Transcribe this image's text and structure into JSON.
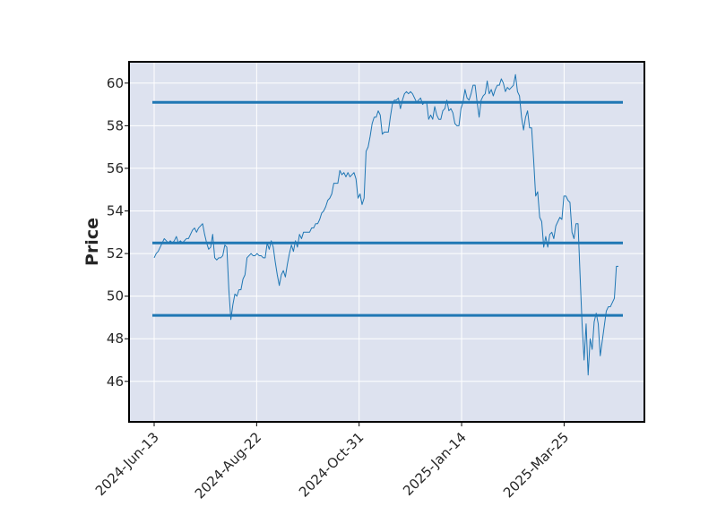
{
  "chart_data": {
    "type": "line",
    "title": "",
    "xlabel": "",
    "ylabel": "Price",
    "ylim": [
      44.1,
      61.0
    ],
    "yticks": [
      46,
      48,
      50,
      52,
      54,
      56,
      58,
      60
    ],
    "ytick_labels": [
      "46",
      "48",
      "50",
      "52",
      "54",
      "56",
      "58",
      "60"
    ],
    "xticks": [
      "2024-Jun-13",
      "2024-Aug-22",
      "2024-Oct-31",
      "2025-Jan-14",
      "2025-Mar-25"
    ],
    "grid": true,
    "colors": {
      "background": "#dde2ef",
      "grid": "#ffffff",
      "line": "#1f77b4",
      "hline": "#1f77b4"
    },
    "hlines": [
      59.1,
      52.5,
      49.1
    ],
    "series": [
      {
        "values": [
          51.8,
          52.0,
          52.1,
          52.3,
          52.5,
          52.7,
          52.6,
          52.5,
          52.6,
          52.5,
          52.6,
          52.8,
          52.5,
          52.6,
          52.5,
          52.6,
          52.7,
          52.7,
          52.9,
          53.1,
          53.2,
          53.0,
          53.2,
          53.3,
          53.4,
          52.9,
          52.5,
          52.2,
          52.3,
          52.9,
          51.8,
          51.7,
          51.8,
          51.8,
          51.9,
          52.4,
          52.3,
          50.3,
          48.9,
          49.6,
          50.1,
          50.0,
          50.3,
          50.3,
          50.8,
          51.0,
          51.8,
          51.9,
          52.0,
          51.9,
          51.9,
          52.0,
          51.9,
          51.9,
          51.8,
          51.8,
          52.5,
          52.2,
          52.6,
          52.3,
          51.6,
          51.0,
          50.5,
          51.0,
          51.2,
          50.9,
          51.5,
          52.0,
          52.4,
          52.1,
          52.6,
          52.3,
          52.9,
          52.7,
          53.0,
          53.0,
          53.0,
          53.0,
          53.2,
          53.2,
          53.4,
          53.4,
          53.6,
          53.9,
          54.0,
          54.2,
          54.5,
          54.6,
          54.8,
          55.3,
          55.3,
          55.3,
          55.9,
          55.7,
          55.8,
          55.6,
          55.8,
          55.6,
          55.7,
          55.8,
          55.5,
          54.6,
          54.8,
          54.3,
          54.6,
          56.8,
          57.0,
          57.5,
          58.1,
          58.4,
          58.4,
          58.7,
          58.5,
          57.6,
          57.7,
          57.7,
          57.7,
          58.4,
          59.0,
          59.2,
          59.2,
          59.3,
          58.8,
          59.2,
          59.5,
          59.6,
          59.5,
          59.6,
          59.5,
          59.3,
          59.1,
          59.2,
          59.3,
          59.0,
          59.1,
          59.1,
          58.3,
          58.5,
          58.3,
          58.9,
          58.5,
          58.3,
          58.3,
          58.7,
          58.8,
          59.2,
          58.7,
          58.8,
          58.6,
          58.1,
          58.0,
          58.0,
          58.8,
          59.1,
          59.7,
          59.3,
          59.2,
          59.5,
          59.9,
          59.9,
          59.1,
          58.4,
          59.2,
          59.4,
          59.5,
          60.1,
          59.5,
          59.7,
          59.4,
          59.7,
          59.9,
          59.9,
          60.2,
          60.0,
          59.6,
          59.8,
          59.7,
          59.8,
          59.9,
          60.4,
          59.6,
          59.4,
          58.4,
          57.8,
          58.4,
          58.7,
          57.9,
          57.9,
          56.4,
          54.7,
          54.9,
          53.7,
          53.5,
          52.3,
          52.8,
          52.3,
          52.9,
          53.0,
          52.7,
          53.3,
          53.5,
          53.7,
          53.6,
          54.7,
          54.7,
          54.5,
          54.4,
          53.0,
          52.7,
          53.4,
          53.4,
          51.0,
          48.7,
          47.0,
          48.7,
          46.3,
          48.0,
          47.5,
          48.8,
          49.2,
          48.7,
          47.2,
          47.9,
          48.6,
          49.3,
          49.5,
          49.5,
          49.7,
          49.9,
          51.4,
          51.4
        ]
      }
    ]
  }
}
